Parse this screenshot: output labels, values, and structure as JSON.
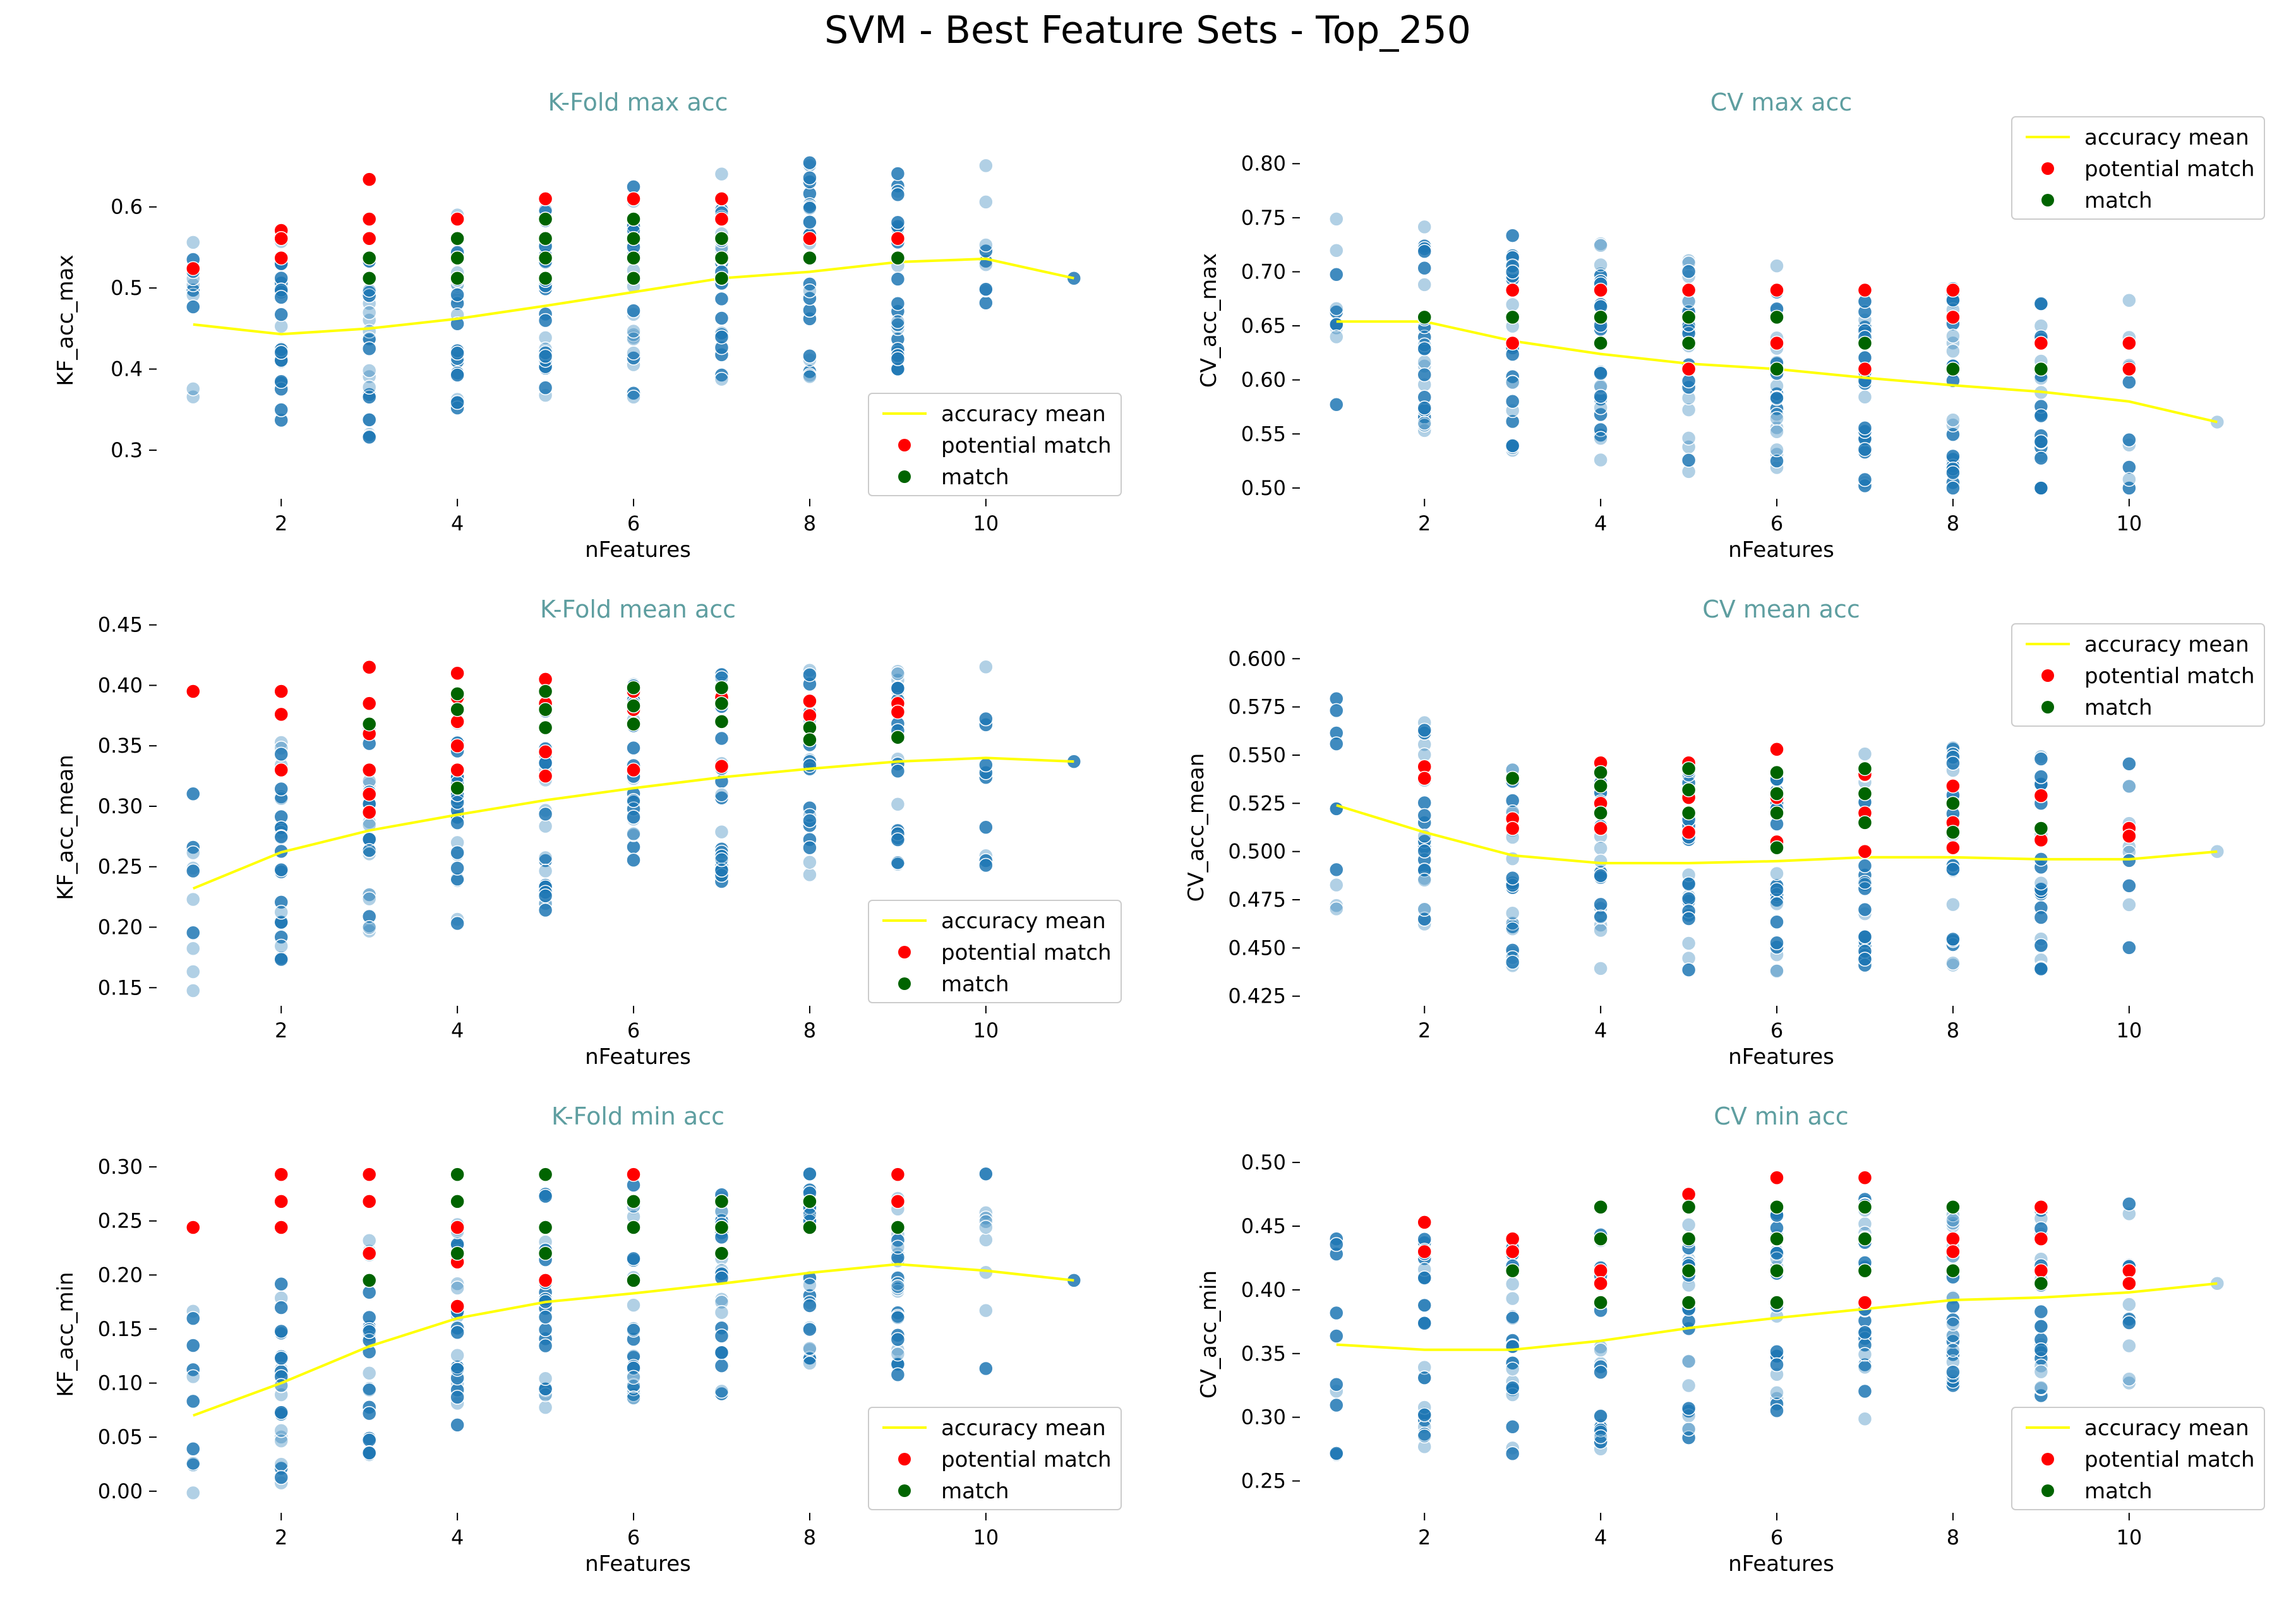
{
  "figure": {
    "title": "SVM - Best Feature Sets - Top_250",
    "colors": {
      "feature_sets": "#1f77b4",
      "accuracy_mean": "#ffff00",
      "potential_match": "#ff0000",
      "match": "#006400",
      "subplot_title": "#5e9ea0"
    }
  },
  "chart_data": [
    {
      "type": "scatter",
      "title": "K-Fold max acc",
      "xlabel": "nFeatures",
      "ylabel": "KF_acc_max",
      "xlim": [
        0.6,
        11.5
      ],
      "ylim": [
        0.24,
        0.68
      ],
      "xticks": [
        2,
        4,
        6,
        8,
        10
      ],
      "yticks": [
        0.3,
        0.4,
        0.5,
        0.6
      ],
      "ytick_labels": [
        "0.3",
        "0.4",
        "0.5",
        "0.6"
      ],
      "legend_loc": "lower right",
      "legend": [
        "accuracy mean",
        "potential match",
        "match"
      ],
      "series": [
        {
          "key": "mean",
          "name": "accuracy mean",
          "x": [
            1,
            2,
            3,
            4,
            5,
            6,
            7,
            8,
            9,
            10,
            11
          ],
          "y": [
            0.455,
            0.443,
            0.45,
            0.462,
            0.478,
            0.495,
            0.512,
            0.52,
            0.532,
            0.536,
            0.512
          ]
        },
        {
          "key": "potential",
          "name": "potential match",
          "x": [
            1,
            2,
            2,
            2,
            3,
            3,
            3,
            3,
            4,
            4,
            4,
            5,
            5,
            5,
            6,
            6,
            6,
            7,
            7,
            8,
            9
          ],
          "y": [
            0.524,
            0.571,
            0.561,
            0.537,
            0.634,
            0.585,
            0.561,
            0.537,
            0.585,
            0.561,
            0.537,
            0.61,
            0.585,
            0.561,
            0.61,
            0.585,
            0.561,
            0.61,
            0.585,
            0.561,
            0.561
          ]
        },
        {
          "key": "match",
          "name": "match",
          "x": [
            3,
            3,
            4,
            4,
            4,
            5,
            5,
            5,
            5,
            6,
            6,
            6,
            6,
            7,
            7,
            7,
            8,
            9
          ],
          "y": [
            0.537,
            0.512,
            0.561,
            0.537,
            0.512,
            0.585,
            0.561,
            0.537,
            0.512,
            0.585,
            0.561,
            0.537,
            0.512,
            0.561,
            0.537,
            0.512,
            0.537,
            0.537
          ]
        }
      ]
    },
    {
      "type": "scatter",
      "title": "CV max acc",
      "xlabel": "nFeatures",
      "ylabel": "CV_acc_max",
      "xlim": [
        0.6,
        11.5
      ],
      "ylim": [
        0.49,
        0.82
      ],
      "xticks": [
        2,
        4,
        6,
        8,
        10
      ],
      "yticks": [
        0.5,
        0.55,
        0.6,
        0.65,
        0.7,
        0.75,
        0.8
      ],
      "ytick_labels": [
        "0.50",
        "0.55",
        "0.60",
        "0.65",
        "0.70",
        "0.75",
        "0.80"
      ],
      "legend_loc": "upper right",
      "legend": [
        "accuracy mean",
        "potential match",
        "match"
      ],
      "series": [
        {
          "key": "mean",
          "name": "accuracy mean",
          "x": [
            1,
            2,
            3,
            4,
            5,
            6,
            7,
            8,
            9,
            10,
            11
          ],
          "y": [
            0.654,
            0.654,
            0.636,
            0.624,
            0.615,
            0.61,
            0.602,
            0.595,
            0.589,
            0.58,
            0.561
          ]
        },
        {
          "key": "potential",
          "name": "potential match",
          "x": [
            2,
            3,
            3,
            4,
            4,
            5,
            5,
            6,
            6,
            7,
            7,
            8,
            8,
            8,
            9,
            10,
            10
          ],
          "y": [
            0.658,
            0.683,
            0.634,
            0.683,
            0.658,
            0.683,
            0.61,
            0.683,
            0.634,
            0.683,
            0.61,
            0.683,
            0.658,
            0.61,
            0.634,
            0.634,
            0.61
          ]
        },
        {
          "key": "match",
          "name": "match",
          "x": [
            2,
            3,
            4,
            4,
            5,
            5,
            6,
            6,
            7,
            8,
            9
          ],
          "y": [
            0.658,
            0.658,
            0.658,
            0.634,
            0.658,
            0.634,
            0.658,
            0.61,
            0.634,
            0.61,
            0.61
          ]
        }
      ]
    },
    {
      "type": "scatter",
      "title": "K-Fold mean acc",
      "xlabel": "nFeatures",
      "ylabel": "KF_acc_mean",
      "xlim": [
        0.6,
        11.5
      ],
      "ylim": [
        0.135,
        0.43
      ],
      "xticks": [
        2,
        4,
        6,
        8,
        10
      ],
      "yticks": [
        0.15,
        0.2,
        0.25,
        0.3,
        0.35,
        0.4,
        0.45
      ],
      "ytick_labels": [
        "0.15",
        "0.20",
        "0.25",
        "0.30",
        "0.35",
        "0.40",
        "0.45"
      ],
      "legend_loc": "lower right",
      "legend": [
        "accuracy mean",
        "potential match",
        "match"
      ],
      "series": [
        {
          "key": "mean",
          "name": "accuracy mean",
          "x": [
            1,
            2,
            3,
            4,
            5,
            6,
            7,
            8,
            9,
            10,
            11
          ],
          "y": [
            0.232,
            0.262,
            0.28,
            0.293,
            0.305,
            0.315,
            0.324,
            0.331,
            0.337,
            0.34,
            0.337
          ]
        },
        {
          "key": "potential",
          "name": "potential match",
          "x": [
            1,
            2,
            2,
            2,
            3,
            3,
            3,
            3,
            3,
            3,
            4,
            4,
            4,
            4,
            4,
            5,
            5,
            5,
            5,
            5,
            6,
            6,
            6,
            7,
            7,
            8,
            8,
            9,
            9
          ],
          "y": [
            0.395,
            0.395,
            0.376,
            0.33,
            0.415,
            0.385,
            0.36,
            0.33,
            0.31,
            0.295,
            0.41,
            0.39,
            0.37,
            0.35,
            0.33,
            0.405,
            0.385,
            0.365,
            0.345,
            0.325,
            0.395,
            0.38,
            0.33,
            0.39,
            0.333,
            0.387,
            0.375,
            0.385,
            0.378
          ]
        },
        {
          "key": "match",
          "name": "match",
          "x": [
            3,
            4,
            4,
            4,
            5,
            5,
            5,
            6,
            6,
            6,
            7,
            7,
            7,
            8,
            8,
            9
          ],
          "y": [
            0.368,
            0.393,
            0.38,
            0.315,
            0.395,
            0.38,
            0.365,
            0.398,
            0.383,
            0.368,
            0.398,
            0.385,
            0.37,
            0.365,
            0.355,
            0.357
          ]
        }
      ]
    },
    {
      "type": "scatter",
      "title": "CV mean acc",
      "xlabel": "nFeatures",
      "ylabel": "CV_acc_mean",
      "xlim": [
        0.6,
        11.5
      ],
      "ylim": [
        0.42,
        0.605
      ],
      "xticks": [
        2,
        4,
        6,
        8,
        10
      ],
      "yticks": [
        0.425,
        0.45,
        0.475,
        0.5,
        0.525,
        0.55,
        0.575,
        0.6
      ],
      "ytick_labels": [
        "0.425",
        "0.450",
        "0.475",
        "0.500",
        "0.525",
        "0.550",
        "0.575",
        "0.600"
      ],
      "legend_loc": "upper right",
      "legend": [
        "accuracy mean",
        "potential match",
        "match"
      ],
      "series": [
        {
          "key": "mean",
          "name": "accuracy mean",
          "x": [
            1,
            2,
            3,
            4,
            5,
            6,
            7,
            8,
            9,
            10,
            11
          ],
          "y": [
            0.524,
            0.51,
            0.498,
            0.494,
            0.494,
            0.495,
            0.497,
            0.497,
            0.496,
            0.496,
            0.5
          ]
        },
        {
          "key": "potential",
          "name": "potential match",
          "x": [
            2,
            2,
            3,
            3,
            4,
            4,
            4,
            5,
            5,
            5,
            6,
            6,
            6,
            7,
            7,
            7,
            8,
            8,
            8,
            9,
            9,
            10,
            10
          ],
          "y": [
            0.544,
            0.538,
            0.517,
            0.512,
            0.546,
            0.525,
            0.512,
            0.546,
            0.528,
            0.51,
            0.553,
            0.528,
            0.505,
            0.54,
            0.52,
            0.5,
            0.534,
            0.515,
            0.502,
            0.529,
            0.506,
            0.512,
            0.508
          ]
        },
        {
          "key": "match",
          "name": "match",
          "x": [
            3,
            4,
            4,
            4,
            5,
            5,
            5,
            6,
            6,
            6,
            6,
            7,
            7,
            7,
            8,
            8,
            9
          ],
          "y": [
            0.538,
            0.541,
            0.534,
            0.52,
            0.543,
            0.532,
            0.52,
            0.541,
            0.53,
            0.52,
            0.502,
            0.543,
            0.53,
            0.515,
            0.525,
            0.51,
            0.512
          ]
        }
      ]
    },
    {
      "type": "scatter",
      "title": "K-Fold min acc",
      "xlabel": "nFeatures",
      "ylabel": "KF_acc_min",
      "xlim": [
        0.6,
        11.5
      ],
      "ylim": [
        -0.02,
        0.31
      ],
      "xticks": [
        2,
        4,
        6,
        8,
        10
      ],
      "yticks": [
        0,
        0.05,
        0.1,
        0.15,
        0.2,
        0.25,
        0.3
      ],
      "ytick_labels": [
        "0.00",
        "0.05",
        "0.10",
        "0.15",
        "0.20",
        "0.25",
        "0.30"
      ],
      "legend_loc": "lower right",
      "legend": [
        "accuracy mean",
        "potential match",
        "match"
      ],
      "series": [
        {
          "key": "mean",
          "name": "accuracy mean",
          "x": [
            1,
            2,
            3,
            4,
            5,
            6,
            7,
            8,
            9,
            10,
            11
          ],
          "y": [
            0.07,
            0.1,
            0.134,
            0.16,
            0.175,
            0.183,
            0.192,
            0.202,
            0.21,
            0.204,
            0.195
          ]
        },
        {
          "key": "potential",
          "name": "potential match",
          "x": [
            1,
            2,
            2,
            2,
            3,
            3,
            3,
            4,
            4,
            4,
            5,
            6,
            6,
            8,
            9,
            9
          ],
          "y": [
            0.244,
            0.293,
            0.268,
            0.244,
            0.293,
            0.268,
            0.22,
            0.244,
            0.212,
            0.171,
            0.195,
            0.293,
            0.268,
            0.268,
            0.293,
            0.268
          ]
        },
        {
          "key": "match",
          "name": "match",
          "x": [
            3,
            4,
            4,
            4,
            5,
            5,
            5,
            6,
            6,
            6,
            7,
            7,
            7,
            8,
            8,
            9
          ],
          "y": [
            0.195,
            0.293,
            0.268,
            0.22,
            0.293,
            0.244,
            0.22,
            0.268,
            0.244,
            0.195,
            0.268,
            0.244,
            0.22,
            0.268,
            0.244,
            0.244
          ]
        }
      ]
    },
    {
      "type": "scatter",
      "title": "CV min acc",
      "xlabel": "nFeatures",
      "ylabel": "CV_acc_min",
      "xlim": [
        0.6,
        11.5
      ],
      "ylim": [
        0.225,
        0.505
      ],
      "xticks": [
        2,
        4,
        6,
        8,
        10
      ],
      "yticks": [
        0.25,
        0.3,
        0.35,
        0.4,
        0.45,
        0.5
      ],
      "ytick_labels": [
        "0.25",
        "0.30",
        "0.35",
        "0.40",
        "0.45",
        "0.50"
      ],
      "legend_loc": "lower right",
      "legend": [
        "accuracy mean",
        "potential match",
        "match"
      ],
      "series": [
        {
          "key": "mean",
          "name": "accuracy mean",
          "x": [
            1,
            2,
            3,
            4,
            5,
            6,
            7,
            8,
            9,
            10,
            11
          ],
          "y": [
            0.357,
            0.353,
            0.353,
            0.36,
            0.37,
            0.378,
            0.385,
            0.392,
            0.394,
            0.398,
            0.405
          ]
        },
        {
          "key": "potential",
          "name": "potential match",
          "x": [
            2,
            2,
            3,
            3,
            4,
            4,
            5,
            5,
            5,
            6,
            6,
            6,
            6,
            7,
            7,
            7,
            8,
            8,
            9,
            9,
            9,
            10,
            10
          ],
          "y": [
            0.453,
            0.43,
            0.44,
            0.43,
            0.415,
            0.405,
            0.475,
            0.44,
            0.39,
            0.488,
            0.465,
            0.44,
            0.415,
            0.488,
            0.415,
            0.39,
            0.44,
            0.43,
            0.465,
            0.44,
            0.415,
            0.415,
            0.405
          ]
        },
        {
          "key": "match",
          "name": "match",
          "x": [
            3,
            4,
            4,
            4,
            5,
            5,
            5,
            5,
            6,
            6,
            6,
            6,
            7,
            7,
            7,
            8,
            8,
            9
          ],
          "y": [
            0.415,
            0.465,
            0.44,
            0.39,
            0.465,
            0.44,
            0.415,
            0.39,
            0.465,
            0.44,
            0.415,
            0.39,
            0.465,
            0.44,
            0.415,
            0.465,
            0.415,
            0.405
          ]
        }
      ]
    }
  ]
}
